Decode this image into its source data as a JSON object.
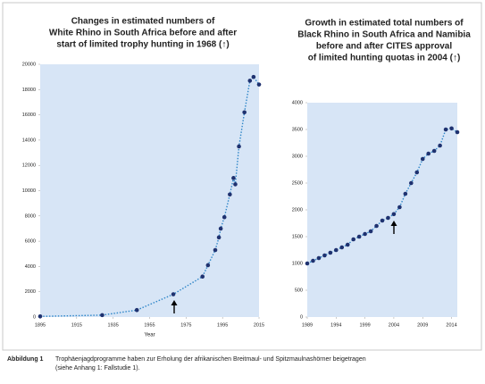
{
  "chart_data": [
    {
      "type": "line",
      "title": [
        "Changes in estimated numbers of",
        "White Rhino in South Africa before and after",
        "start of limited trophy hunting in 1968 (↑)"
      ],
      "x_label": "Year",
      "x": [
        1895,
        1929,
        1948,
        1968,
        1984,
        1987,
        1991,
        1993,
        1994,
        1996,
        1999,
        2001,
        2002,
        2004,
        2007,
        2010,
        2012,
        2015
      ],
      "series": [
        {
          "color": "#1f3270",
          "values": [
            50,
            150,
            550,
            1800,
            3200,
            4100,
            5300,
            6300,
            7000,
            7900,
            9700,
            11000,
            10500,
            13500,
            16200,
            18700,
            19000,
            18400
          ]
        }
      ],
      "xlim": [
        1895,
        2015
      ],
      "xticks": [
        1895,
        1915,
        1935,
        1955,
        1975,
        1995,
        2015
      ],
      "ylim": [
        0,
        20000
      ],
      "yticks": [
        0,
        2000,
        4000,
        6000,
        8000,
        10000,
        12000,
        14000,
        16000,
        18000,
        20000
      ]
    },
    {
      "type": "line",
      "title": [
        "Growth in estimated total numbers of",
        "Black Rhino in South Africa and Namibia",
        "before and after CITES approval",
        "of limited hunting quotas in 2004 (↑)"
      ],
      "x": [
        1989,
        1990,
        1991,
        1992,
        1993,
        1994,
        1995,
        1996,
        1997,
        1998,
        1999,
        2000,
        2001,
        2002,
        2003,
        2004,
        2005,
        2006,
        2007,
        2008,
        2009,
        2010,
        2011,
        2012,
        2013,
        2014,
        2015
      ],
      "series": [
        {
          "color": "#1f3270",
          "values": [
            1000,
            1050,
            1100,
            1150,
            1200,
            1250,
            1300,
            1350,
            1450,
            1500,
            1550,
            1600,
            1700,
            1800,
            1850,
            1920,
            2050,
            2300,
            2500,
            2700,
            2950,
            3050,
            3100,
            3200,
            3500,
            3520,
            3450
          ]
        }
      ],
      "xlim": [
        1989,
        2015
      ],
      "xticks": [
        1989,
        1994,
        1999,
        2004,
        2009,
        2014
      ],
      "ylim": [
        0,
        4000
      ],
      "yticks": [
        0,
        500,
        1000,
        1500,
        2000,
        2500,
        3000,
        3500,
        4000
      ]
    }
  ],
  "caption": {
    "label": "Abbildung 1",
    "text": [
      "Trophäenjagdprogramme haben zur Erholung der afrikanischen Breitmaul- und Spitzmaulnashörner beigetragen",
      "(siehe Anhang 1: Fallstudie 1)."
    ]
  }
}
